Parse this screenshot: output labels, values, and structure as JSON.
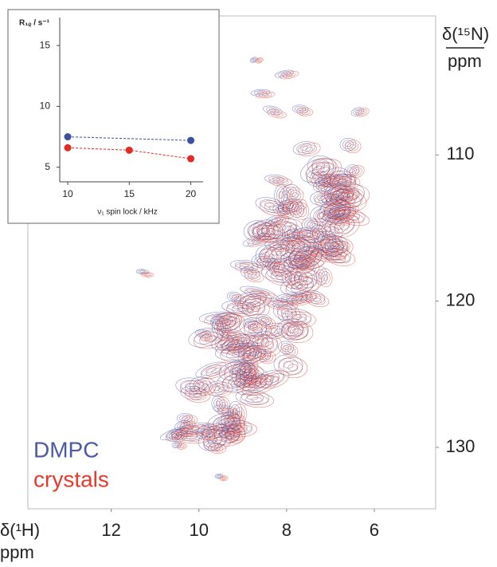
{
  "chart_data": [
    {
      "type": "contour",
      "x_label": "δ(¹H)",
      "x_unit": "ppm",
      "y_label": "δ(¹⁵N)",
      "y_unit": "ppm",
      "xlim": [
        13.9,
        4.6
      ],
      "xticks": [
        12,
        10,
        8,
        6
      ],
      "ylim": [
        100.5,
        134.2
      ],
      "yticks": [
        110,
        120,
        130
      ],
      "series": [
        {
          "name": "DMPC",
          "color": "#4b5aa8"
        },
        {
          "name": "crystals",
          "color": "#e53b2a"
        }
      ],
      "legend": "lower left"
    },
    {
      "type": "line",
      "y_label": "R₁ᵨ / s⁻¹",
      "x_label": "ν₁ spin lock / kHz",
      "xlim": [
        9.35,
        21
      ],
      "xticks": [
        10,
        15,
        20
      ],
      "ylim": [
        3.8,
        17.3
      ],
      "yticks": [
        5,
        10,
        15
      ],
      "series": [
        {
          "name": "DMPC",
          "color": "#3a4fa0",
          "x": [
            10,
            20
          ],
          "values": [
            7.5,
            7.2
          ]
        },
        {
          "name": "crystals",
          "color": "#e52a22",
          "x": [
            10,
            15,
            20
          ],
          "values": [
            6.6,
            6.4,
            5.7
          ]
        }
      ]
    }
  ]
}
